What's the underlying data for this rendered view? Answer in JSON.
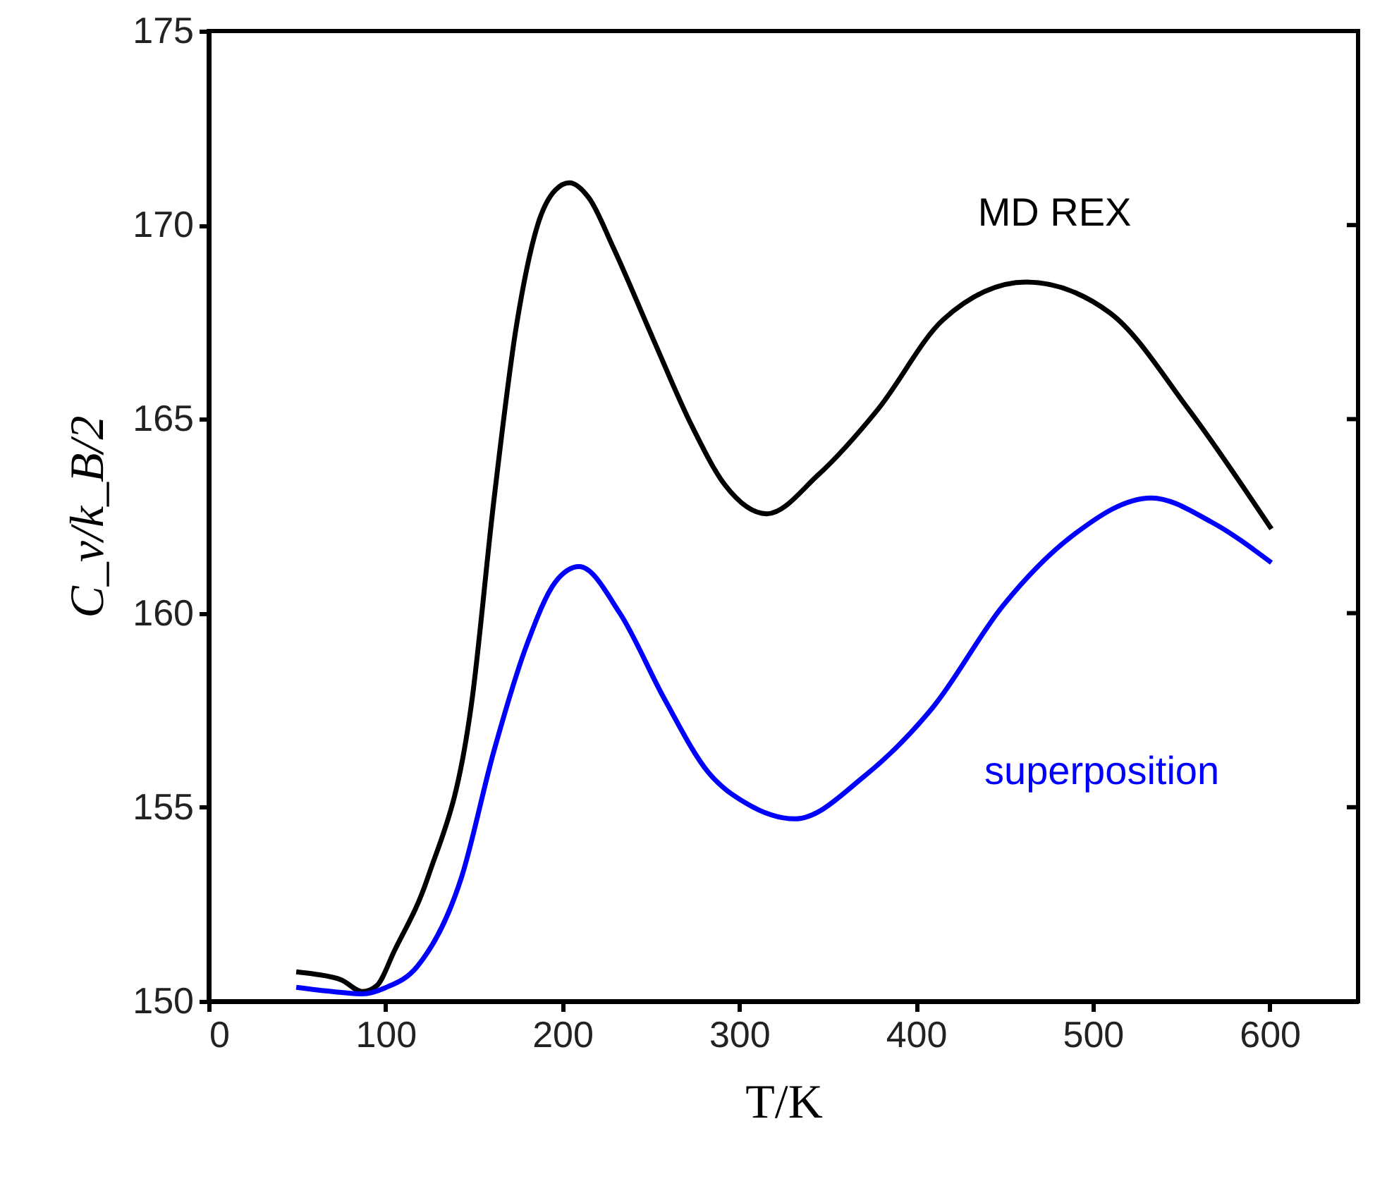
{
  "chart_data": {
    "type": "line",
    "xlabel": "T/K",
    "ylabel": "C_v/k_B/2",
    "xlim": [
      0,
      650
    ],
    "xticks": [
      0,
      100,
      200,
      300,
      400,
      500,
      600
    ],
    "ylim": [
      150,
      175
    ],
    "yticks": [
      150,
      155,
      160,
      165,
      170,
      175
    ],
    "grid": false,
    "marker": "none",
    "line_style": "solid",
    "series": [
      {
        "name": "MD REX",
        "color": "#000000",
        "x": [
          49.5,
          60,
          75,
          87,
          95,
          105,
          124,
          149,
          161,
          174,
          186,
          196,
          204,
          215,
          229,
          251,
          273.5,
          292,
          315.6,
          344.6,
          378.6,
          415.3,
          462.4,
          509.6,
          554,
          601
        ],
        "values": [
          150.76,
          150.7,
          150.55,
          150.25,
          150.4,
          151.3,
          153.2,
          157.8,
          162.8,
          167.4,
          170.0,
          170.9,
          171.09,
          170.7,
          169.4,
          167.1,
          164.8,
          163.3,
          162.56,
          163.56,
          165.26,
          167.56,
          168.53,
          167.74,
          165.26,
          162.17
        ]
      },
      {
        "name": "superposition",
        "color": "#0000ff",
        "x": [
          49.5,
          70,
          87,
          100,
          118,
          143,
          161,
          180,
          196,
          209.5,
          232.5,
          257.6,
          282.5,
          304,
          331.5,
          370.8,
          410,
          449.3,
          488.6,
          533,
          567,
          601
        ],
        "values": [
          150.36,
          150.25,
          150.19,
          150.35,
          150.9,
          153.2,
          156.4,
          159.2,
          160.8,
          161.2,
          160.0,
          157.8,
          155.9,
          155.1,
          154.7,
          155.8,
          157.6,
          160.2,
          162.0,
          162.97,
          162.35,
          161.3
        ]
      }
    ]
  }
}
